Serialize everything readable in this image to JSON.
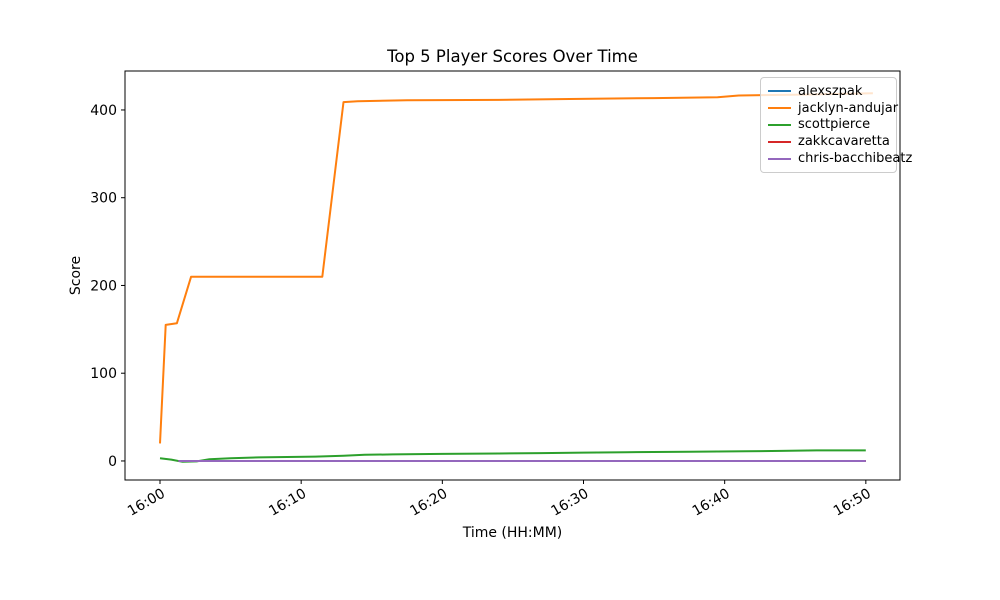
{
  "figure": {
    "title": "Top 5 Player Scores Over Time",
    "xlabel": "Time (HH:MM)",
    "ylabel": "Score",
    "background": "#ffffff"
  },
  "chart_data": {
    "type": "line",
    "title": "Top 5 Player Scores Over Time",
    "xlabel": "Time (HH:MM)",
    "ylabel": "Score",
    "x_unit": "minutes after 16:00",
    "grid": false,
    "legend_position": "upper right",
    "xlim": [
      -2.48,
      52.42
    ],
    "ylim": [
      -21.7,
      444.4
    ],
    "x_ticks": {
      "positions": [
        0,
        10,
        20,
        30,
        40,
        50
      ],
      "labels": [
        "16:00",
        "16:10",
        "16:20",
        "16:30",
        "16:40",
        "16:50"
      ],
      "rotation_deg": 30
    },
    "y_ticks": {
      "positions": [
        0,
        100,
        200,
        300,
        400
      ],
      "labels": [
        "0",
        "100",
        "200",
        "300",
        "400"
      ]
    },
    "axis_color": "#000000",
    "series": [
      {
        "name": "alexszpak",
        "color": "#1f77b4",
        "points": [
          [
            1.3,
            0
          ],
          [
            50,
            0
          ]
        ]
      },
      {
        "name": "jacklyn-andujar",
        "color": "#ff7f0e",
        "points": [
          [
            0,
            20
          ],
          [
            0.4,
            155
          ],
          [
            1.2,
            157
          ],
          [
            2.2,
            210
          ],
          [
            11.5,
            210
          ],
          [
            13,
            409
          ],
          [
            14,
            410
          ],
          [
            17.5,
            411
          ],
          [
            24,
            411.5
          ],
          [
            29,
            412.5
          ],
          [
            35,
            413.5
          ],
          [
            39.5,
            414.5
          ],
          [
            41,
            416.5
          ],
          [
            45.5,
            417.5
          ],
          [
            50.5,
            419
          ]
        ]
      },
      {
        "name": "scottpierce",
        "color": "#2ca02c",
        "points": [
          [
            0,
            3
          ],
          [
            0.8,
            1.5
          ],
          [
            1.6,
            -1
          ],
          [
            2.6,
            -0.5
          ],
          [
            3.5,
            2
          ],
          [
            5,
            3
          ],
          [
            7,
            4
          ],
          [
            9,
            4.5
          ],
          [
            11,
            5
          ],
          [
            13,
            6
          ],
          [
            14.5,
            7
          ],
          [
            16.5,
            7.5
          ],
          [
            20,
            8
          ],
          [
            24,
            8.5
          ],
          [
            27,
            9
          ],
          [
            30,
            9.5
          ],
          [
            33,
            10
          ],
          [
            37.5,
            10.5
          ],
          [
            41.5,
            11
          ],
          [
            44,
            11.5
          ],
          [
            46.5,
            12
          ],
          [
            50,
            12
          ]
        ]
      },
      {
        "name": "zakkcavaretta",
        "color": "#d62728",
        "points": [
          [
            1.3,
            0
          ],
          [
            50,
            0
          ]
        ]
      },
      {
        "name": "chris-bacchibeatz",
        "color": "#9467bd",
        "points": [
          [
            1.3,
            0
          ],
          [
            50,
            0
          ]
        ]
      }
    ]
  }
}
